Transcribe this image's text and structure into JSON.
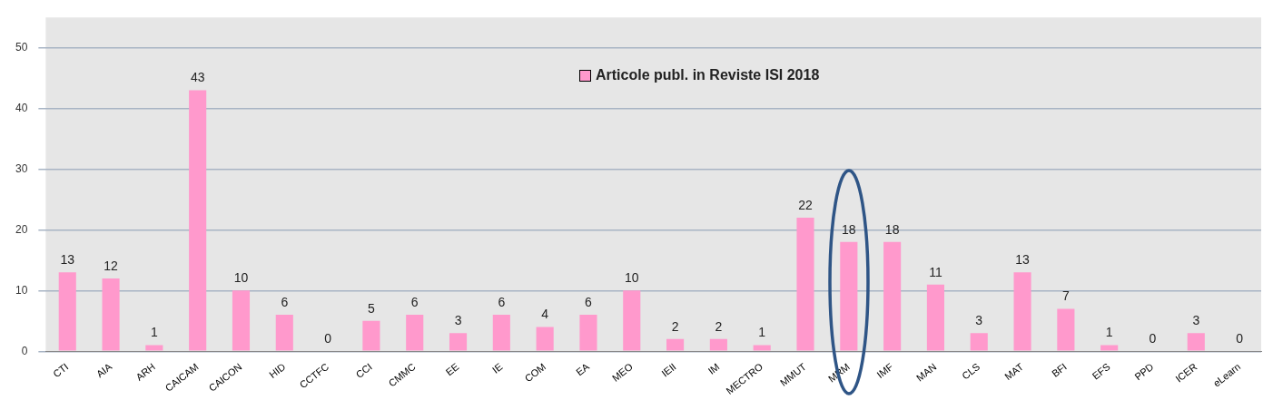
{
  "chart_data": {
    "type": "bar",
    "categories": [
      "CTI",
      "AIA",
      "ARH",
      "CAICAM",
      "CAICON",
      "HID",
      "CCTFC",
      "CCI",
      "CMMC",
      "EE",
      "IE",
      "COM",
      "EA",
      "MEO",
      "IEII",
      "IM",
      "MECTRO",
      "MMUT",
      "MRM",
      "IMF",
      "MAN",
      "CLS",
      "MAT",
      "BFI",
      "EFS",
      "PPD",
      "ICER",
      "eLearn"
    ],
    "series": [
      {
        "name": "Articole publ. in Reviste ISI 2018",
        "color": "#ff99cc",
        "values": [
          13,
          12,
          1,
          43,
          10,
          6,
          0,
          5,
          6,
          3,
          6,
          4,
          6,
          10,
          2,
          2,
          1,
          22,
          18,
          18,
          11,
          3,
          13,
          7,
          1,
          0,
          3,
          0
        ]
      }
    ],
    "ylim": [
      0,
      55
    ],
    "yticks": [
      0,
      10,
      20,
      30,
      40,
      50
    ],
    "grid": "y",
    "legend": "top",
    "data_labels": true
  }
}
